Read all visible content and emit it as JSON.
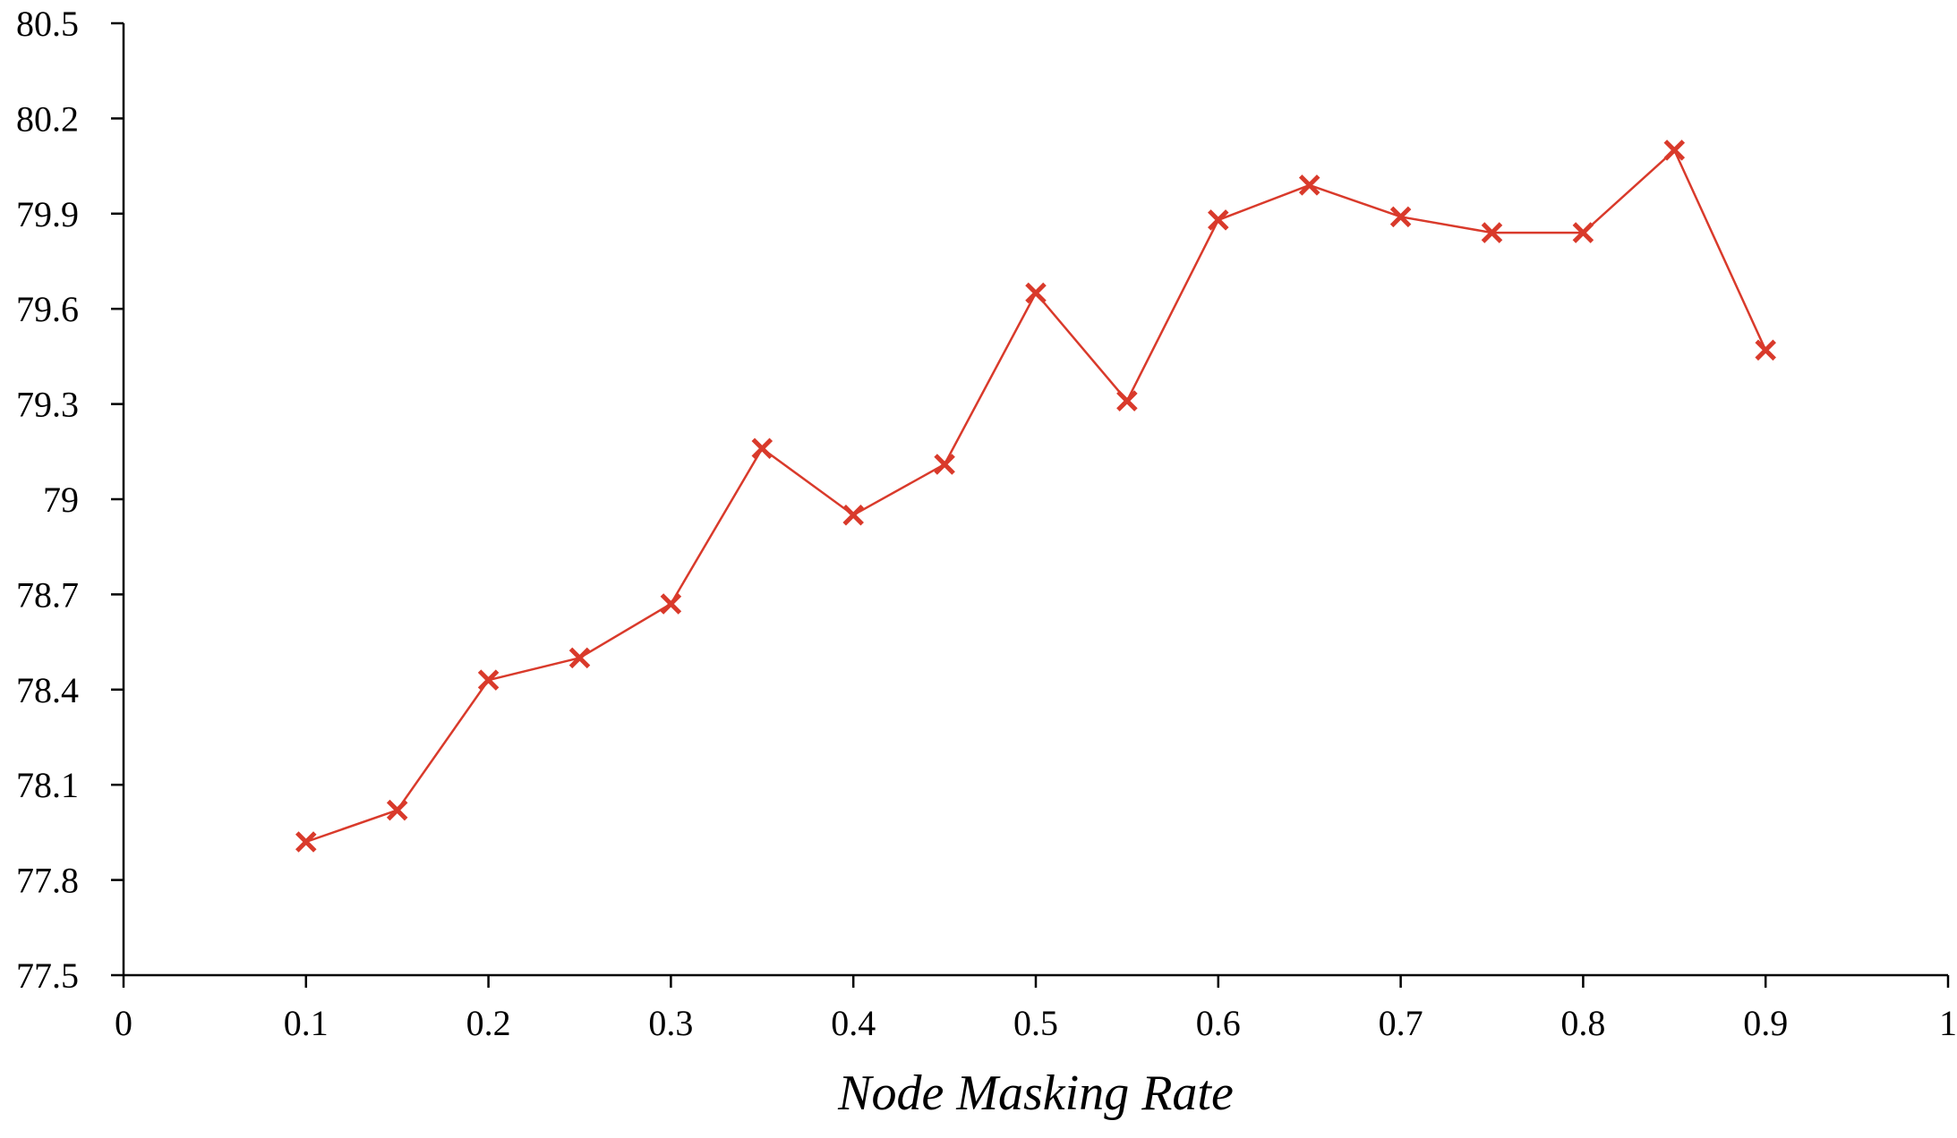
{
  "chart_data": {
    "type": "line",
    "title": "",
    "xlabel": "Node Masking Rate",
    "ylabel": "",
    "xlim": [
      0,
      1
    ],
    "ylim": [
      77.5,
      80.5
    ],
    "x_ticks": [
      0,
      0.1,
      0.2,
      0.3,
      0.4,
      0.5,
      0.6,
      0.7,
      0.8,
      0.9,
      1
    ],
    "x_tick_labels": [
      "0",
      "0.1",
      "0.2",
      "0.3",
      "0.4",
      "0.5",
      "0.6",
      "0.7",
      "0.8",
      "0.9",
      "1"
    ],
    "y_ticks": [
      77.5,
      77.8,
      78.1,
      78.4,
      78.7,
      79,
      79.3,
      79.6,
      79.9,
      80.2,
      80.5
    ],
    "y_tick_labels": [
      "77.5",
      "77.8",
      "78.1",
      "78.4",
      "78.7",
      "79",
      "79.3",
      "79.6",
      "79.9",
      "80.2",
      "80.5"
    ],
    "grid": false,
    "series": [
      {
        "marker": "x",
        "color": "#d93a2b",
        "x": [
          0.1,
          0.15,
          0.2,
          0.25,
          0.3,
          0.35,
          0.4,
          0.45,
          0.5,
          0.55,
          0.6,
          0.65,
          0.7,
          0.75,
          0.8,
          0.85,
          0.9
        ],
        "y": [
          77.92,
          78.02,
          78.43,
          78.5,
          78.67,
          79.16,
          78.95,
          79.11,
          79.65,
          79.31,
          79.88,
          79.99,
          79.89,
          79.84,
          79.84,
          80.1,
          79.47
        ]
      }
    ]
  }
}
